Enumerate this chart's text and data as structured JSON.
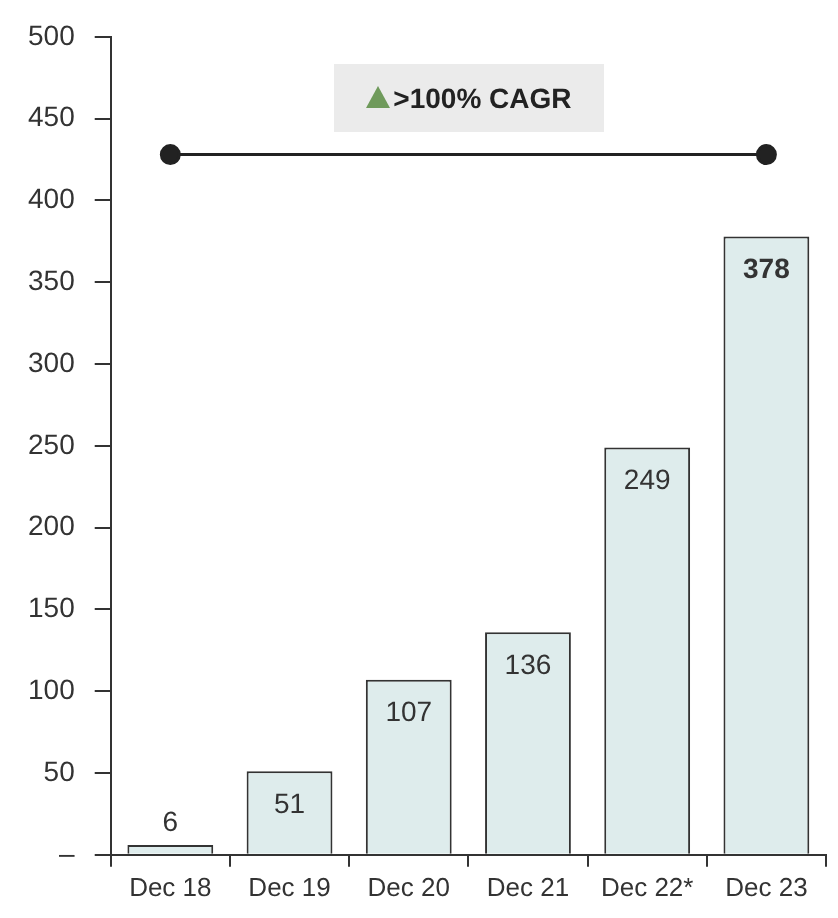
{
  "chart_data": {
    "type": "bar",
    "categories": [
      "Dec 18",
      "Dec 19",
      "Dec 20",
      "Dec 21",
      "Dec 22*",
      "Dec 23"
    ],
    "series": [
      {
        "color": "#deecec",
        "values": [
          6,
          51,
          107,
          136,
          249,
          378
        ],
        "value_labels": [
          "6",
          "51",
          "107",
          "136",
          "249",
          "378"
        ]
      },
      {
        "type": "line",
        "color": "#222222",
        "x": [
          "Dec 18",
          "Dec 23"
        ],
        "values": [
          428,
          428
        ],
        "marker": "circle",
        "line_style": "solid"
      }
    ],
    "ylim": [
      0,
      500
    ],
    "yticks": [
      {
        "value": 0,
        "label": "–"
      },
      50,
      100,
      150,
      200,
      250,
      300,
      350,
      400,
      450,
      500
    ],
    "grid": false,
    "legend": false,
    "annotations": [
      ">100% CAGR"
    ]
  }
}
